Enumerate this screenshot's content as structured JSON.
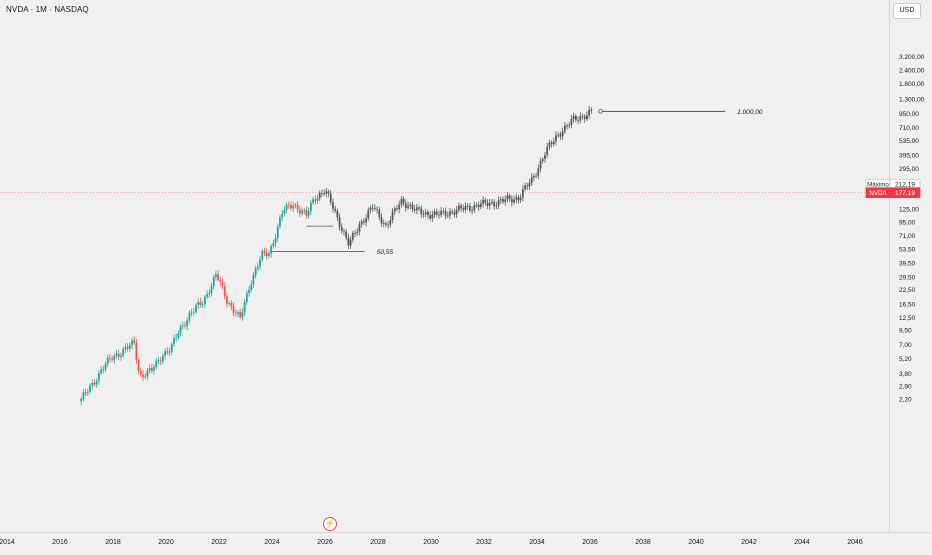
{
  "header": {
    "symbol_title": "NVDA · 1M · NASDAQ",
    "currency": "USD"
  },
  "icons": {
    "flash": "lightning-icon"
  },
  "colors": {
    "background": "#f0f0f0",
    "up": "#26a69a",
    "down": "#ef5350",
    "projection": "#5a5a5a",
    "target_line": "#2a4d9b",
    "last_price": "#f23645"
  },
  "chart_data": {
    "type": "candlestick",
    "scale": "log",
    "x_ticks": [
      "2014",
      "2016",
      "2018",
      "2020",
      "2022",
      "2024",
      "2026",
      "2028",
      "2030",
      "2032",
      "2034",
      "2036",
      "2038",
      "2040",
      "2042",
      "2044",
      "2046"
    ],
    "y_ticks": [
      "3.200,00",
      "2.400,00",
      "1.800,00",
      "1.300,00",
      "950,00",
      "710,00",
      "535,00",
      "395,00",
      "295,00",
      "125,00",
      "95,00",
      "71,00",
      "53,50",
      "39,50",
      "29,50",
      "22,50",
      "16,50",
      "12,50",
      "9,50",
      "7,00",
      "5,20",
      "3,80",
      "2,90",
      "2,20"
    ],
    "y_tick_values": [
      3200,
      2400,
      1800,
      1300,
      950,
      710,
      535,
      395,
      295,
      125,
      95,
      71,
      53.5,
      39.5,
      29.5,
      22.5,
      16.5,
      12.5,
      9.5,
      7,
      5.2,
      3.8,
      2.9,
      2.2
    ],
    "markers": [
      {
        "label": "Máximo",
        "value_label": "212,19",
        "value": 212.19
      },
      {
        "label": "NVDA",
        "value_label": "177,19",
        "value": 177.19
      }
    ],
    "annotations": [
      {
        "text": "1.000,00",
        "value": 1000,
        "from": 2036.4,
        "to": 2041.1
      },
      {
        "text": "50,55",
        "value": 50.55,
        "from": 2024.0,
        "to": 2027.5
      }
    ],
    "support_line": {
      "value": 87,
      "from": 2025.3,
      "to": 2026.3
    },
    "anchors": [
      {
        "t": 2016.8,
        "v": 2.2
      },
      {
        "t": 2017.2,
        "v": 2.9
      },
      {
        "t": 2017.6,
        "v": 4.3
      },
      {
        "t": 2018.0,
        "v": 5.3
      },
      {
        "t": 2018.5,
        "v": 6.5
      },
      {
        "t": 2018.8,
        "v": 7.1
      },
      {
        "t": 2019.0,
        "v": 3.6
      },
      {
        "t": 2019.5,
        "v": 4.1
      },
      {
        "t": 2019.9,
        "v": 5.8
      },
      {
        "t": 2020.2,
        "v": 6.5
      },
      {
        "t": 2020.5,
        "v": 9.4
      },
      {
        "t": 2020.9,
        "v": 13.4
      },
      {
        "t": 2021.4,
        "v": 17.5
      },
      {
        "t": 2021.9,
        "v": 31.0
      },
      {
        "t": 2022.3,
        "v": 18.0
      },
      {
        "t": 2022.8,
        "v": 12.0
      },
      {
        "t": 2023.2,
        "v": 27.0
      },
      {
        "t": 2023.6,
        "v": 46.0
      },
      {
        "t": 2023.9,
        "v": 49.0
      },
      {
        "t": 2024.4,
        "v": 118.0
      },
      {
        "t": 2024.8,
        "v": 140.0
      },
      {
        "t": 2025.3,
        "v": 108.0
      },
      {
        "t": 2025.6,
        "v": 160.0
      },
      {
        "t": 2026.0,
        "v": 185.0
      },
      {
        "t": 2026.3,
        "v": 130.0
      },
      {
        "t": 2026.9,
        "v": 58.0
      },
      {
        "t": 2027.3,
        "v": 90.0
      },
      {
        "t": 2027.8,
        "v": 130.0
      },
      {
        "t": 2028.3,
        "v": 88.0
      },
      {
        "t": 2028.9,
        "v": 150.0
      },
      {
        "t": 2029.5,
        "v": 118.0
      },
      {
        "t": 2030.2,
        "v": 110.0
      },
      {
        "t": 2030.9,
        "v": 120.0
      },
      {
        "t": 2031.7,
        "v": 135.0
      },
      {
        "t": 2032.5,
        "v": 145.0
      },
      {
        "t": 2033.3,
        "v": 160.0
      },
      {
        "t": 2033.8,
        "v": 230.0
      },
      {
        "t": 2034.3,
        "v": 410.0
      },
      {
        "t": 2034.8,
        "v": 620.0
      },
      {
        "t": 2035.4,
        "v": 840.0
      },
      {
        "t": 2036.1,
        "v": 990.0
      }
    ]
  }
}
